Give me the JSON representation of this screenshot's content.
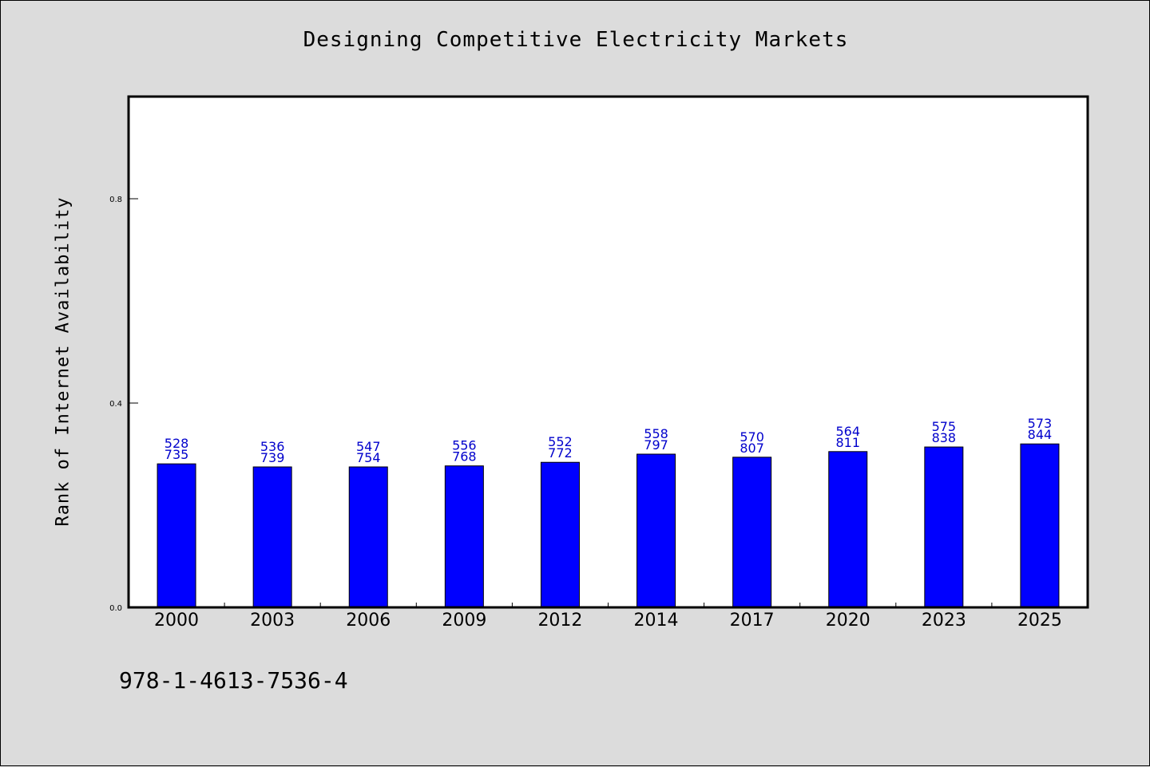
{
  "chart_data": {
    "type": "bar",
    "title": "Designing Competitive Electricity Markets",
    "xlabel": "",
    "ylabel": "Rank of Internet Availability",
    "ylim": [
      0,
      1.0
    ],
    "yticks": [
      0.0,
      0.4,
      0.8
    ],
    "ytick_labels": [
      "0.0",
      "0.4",
      "0.8"
    ],
    "categories": [
      "2000",
      "2003",
      "2006",
      "2009",
      "2012",
      "2014",
      "2017",
      "2020",
      "2023",
      "2025"
    ],
    "values": [
      0.281,
      0.275,
      0.275,
      0.277,
      0.284,
      0.3,
      0.294,
      0.305,
      0.314,
      0.32
    ],
    "label_top": [
      "528",
      "536",
      "547",
      "556",
      "552",
      "558",
      "570",
      "564",
      "575",
      "573"
    ],
    "label_bottom": [
      "735",
      "739",
      "754",
      "768",
      "772",
      "797",
      "807",
      "811",
      "838",
      "844"
    ],
    "grid": false,
    "colors": {
      "bar": "#0000ff",
      "label": "#0000cc",
      "axis": "#000000",
      "background": "#dcdcdc",
      "plot_bg": "#ffffff"
    }
  },
  "footer": {
    "isbn": "978-1-4613-7536-4"
  }
}
